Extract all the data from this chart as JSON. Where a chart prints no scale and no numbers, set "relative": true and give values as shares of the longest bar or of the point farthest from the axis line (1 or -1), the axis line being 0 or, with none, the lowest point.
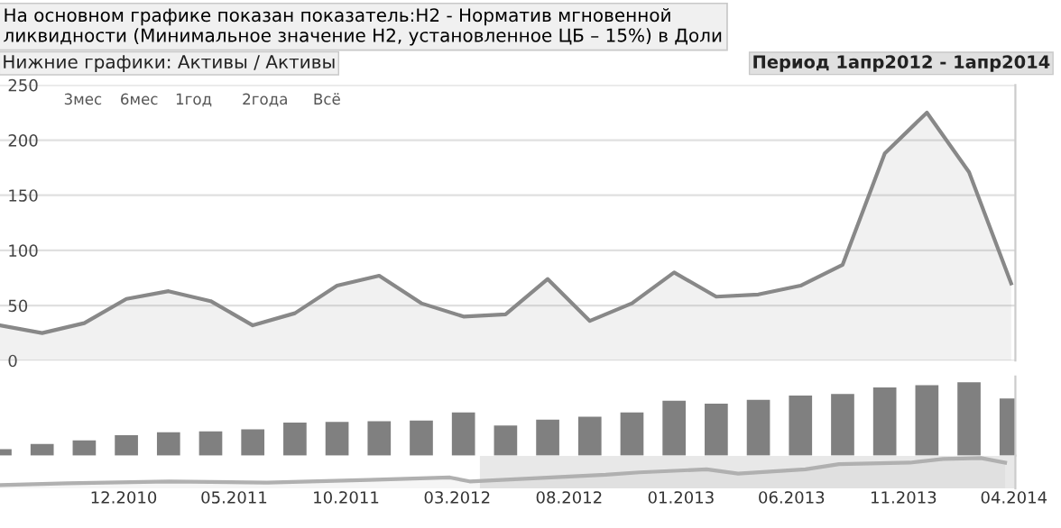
{
  "chart_data": [
    {
      "type": "area",
      "title": "На основном графике показан показатель:H2 - Норматив мгновенной\nликвидности (Минимальное значение Н2, установленное ЦБ – 15%) в Доли",
      "annotations": [
        "Нижние графики: Активы / Активы",
        "3мес",
        "6мес",
        "1год",
        "2года",
        "Всё",
        "Период 1апр2012 - 1апр2014"
      ],
      "categories": [
        null,
        null,
        null,
        null,
        null,
        null,
        null,
        null,
        null,
        null,
        null,
        null,
        null,
        null,
        null,
        null,
        null,
        null,
        null,
        null,
        null,
        null,
        null,
        null,
        null
      ],
      "series": [
        {
          "color": "#888888",
          "values": [
            32,
            25,
            34,
            56,
            63,
            54,
            32,
            43,
            68,
            77,
            52,
            40,
            42,
            74,
            36,
            52,
            80,
            58,
            60,
            68,
            87,
            188,
            225,
            171,
            70
          ]
        }
      ],
      "ylim": [
        0,
        250
      ],
      "yticks": [
        0,
        50,
        100,
        150,
        200,
        250
      ],
      "tick_labels": "y",
      "grid": "y"
    },
    {
      "type": "bar",
      "relative": true,
      "categories": [
        null,
        null,
        null,
        null,
        null,
        null,
        null,
        null,
        null,
        null,
        null,
        null,
        null,
        null,
        null,
        null,
        null,
        null,
        null,
        null,
        null,
        null,
        null,
        null,
        null
      ],
      "series": [
        {
          "color": "#808080",
          "values": [
            0.09,
            0.16,
            0.21,
            0.28,
            0.32,
            0.33,
            0.36,
            0.45,
            0.46,
            0.47,
            0.48,
            0.59,
            0.41,
            0.49,
            0.53,
            0.59,
            0.75,
            0.71,
            0.76,
            0.82,
            0.84,
            0.93,
            0.96,
            1,
            0.78
          ]
        }
      ],
      "tick_labels": false
    },
    {
      "type": "area",
      "relative": true,
      "x": [
        "2010-06-15",
        "2010-09-15",
        "2011-02-01",
        "2011-06-15",
        "2011-11-01",
        "2012-02-20",
        "2012-03-18",
        "2012-09-20",
        "2012-11-05",
        "2013-02-05",
        "2013-03-20",
        "2013-06-20",
        "2013-08-05",
        "2013-11-10",
        "2013-12-25",
        "2014-02-15",
        "2014-03-20"
      ],
      "series": [
        {
          "color": "#b0b0b0",
          "values": [
            0.11,
            0.17,
            0.23,
            0.19,
            0.28,
            0.36,
            0.23,
            0.45,
            0.53,
            0.63,
            0.49,
            0.63,
            0.8,
            0.85,
            0.97,
            1,
            0.85
          ]
        }
      ],
      "xlim": [
        "2010-06-15",
        "2014-04-03"
      ],
      "xticks": [
        {
          "value": "2010-12",
          "label": "12.2010"
        },
        {
          "value": "2011-05",
          "label": "05.2011"
        },
        {
          "value": "2011-10",
          "label": "10.2011"
        },
        {
          "value": "2012-03",
          "label": "03.2012"
        },
        {
          "value": "2012-08",
          "label": "08.2012"
        },
        {
          "value": "2013-01",
          "label": "01.2013"
        },
        {
          "value": "2013-06",
          "label": "06.2013"
        },
        {
          "value": "2013-11",
          "label": "11.2013"
        },
        {
          "value": "2014-04",
          "label": "04.2014"
        }
      ],
      "bands": [
        {
          "axis": "x",
          "from": "2012-04",
          "to": "2014-04-03",
          "color": "#e8e8e8"
        }
      ],
      "tick_labels": "x"
    }
  ]
}
